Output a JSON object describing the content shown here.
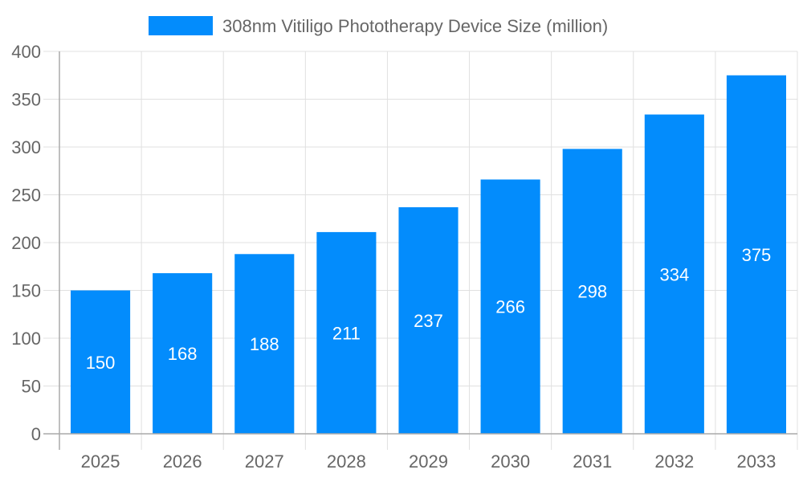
{
  "chart_data": {
    "type": "bar",
    "categories": [
      "2025",
      "2026",
      "2027",
      "2028",
      "2029",
      "2030",
      "2031",
      "2032",
      "2033"
    ],
    "series": [
      {
        "name": "308nm Vitiligo Phototherapy Device Size (million)",
        "values": [
          150,
          168,
          188,
          211,
          237,
          266,
          298,
          334,
          375
        ]
      }
    ],
    "ylim": [
      0,
      400
    ],
    "yticks": [
      0,
      50,
      100,
      150,
      200,
      250,
      300,
      350,
      400
    ],
    "grid": true,
    "legend": "top",
    "colors": {
      "bar": "#038cfc",
      "grid": "#e0e0e0",
      "axis": "#aaaaaa",
      "text": "#666666",
      "bar_label": "#ffffff"
    }
  }
}
